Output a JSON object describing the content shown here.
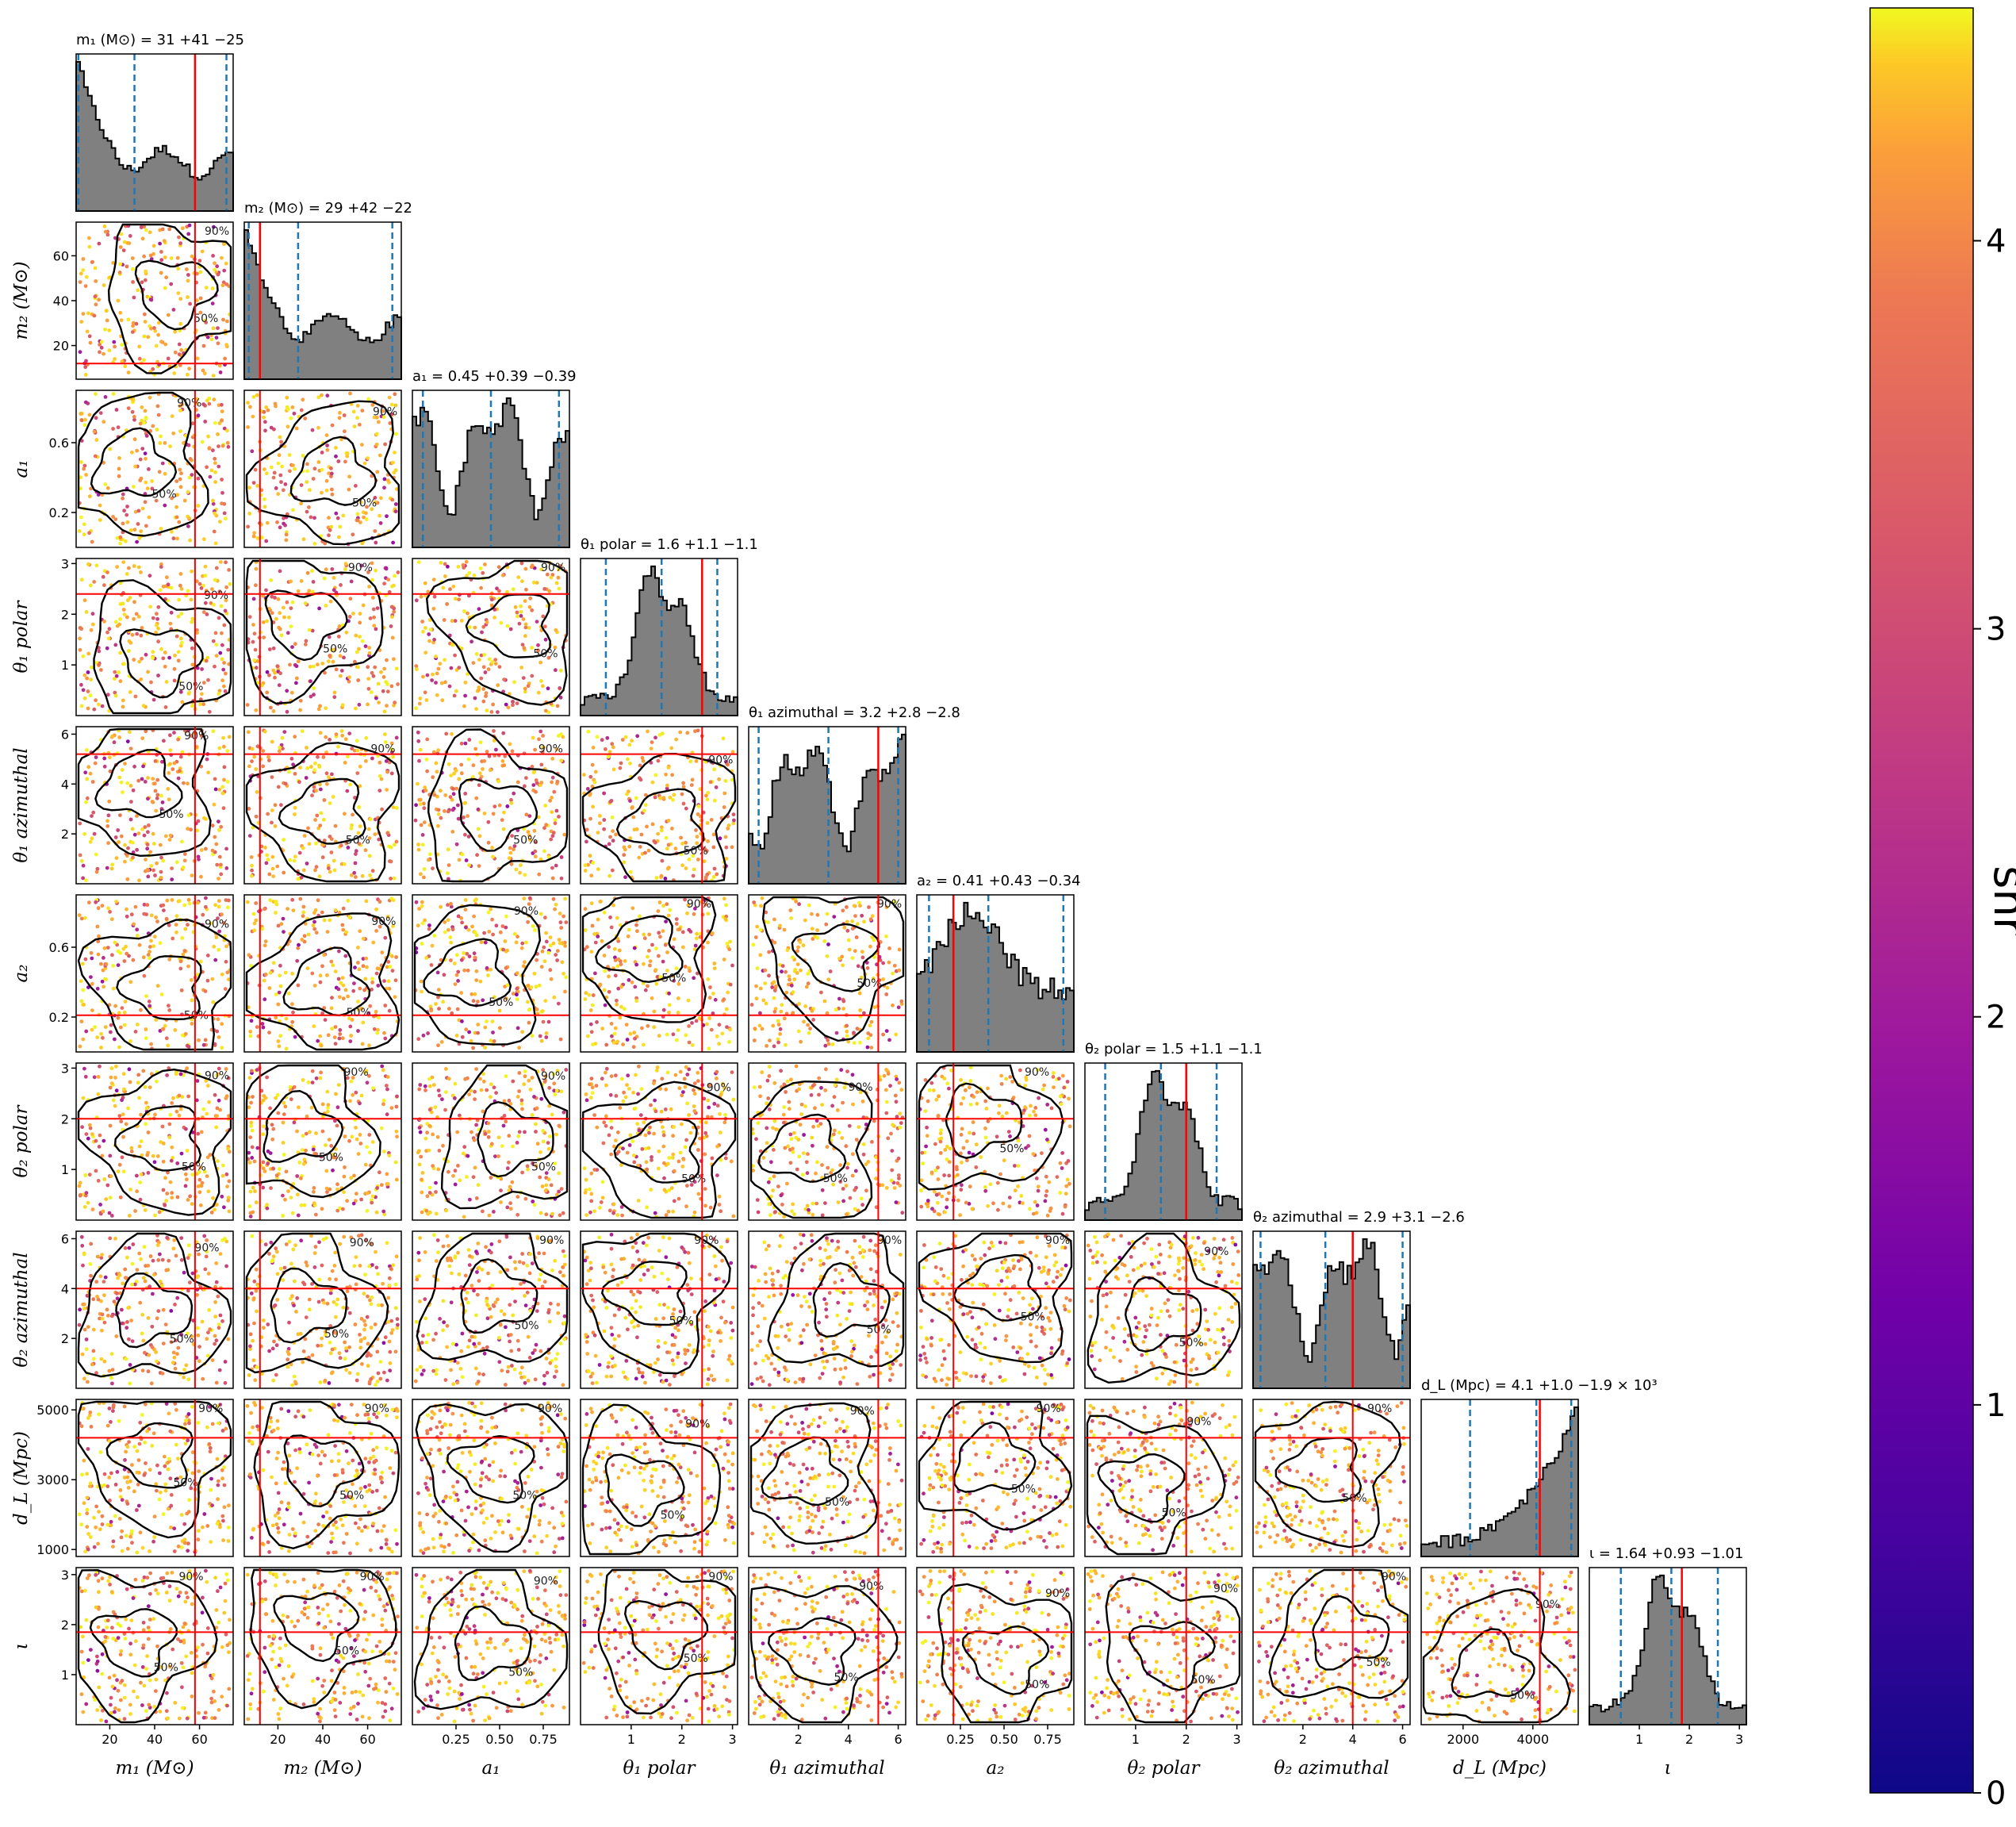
{
  "chart_data": {
    "type": "scatter",
    "subtype": "corner-plot",
    "colorbar": {
      "label": "snr",
      "range": [
        0,
        4.6
      ],
      "ticks": [
        "0",
        "1",
        "2",
        "3",
        "4"
      ],
      "colormap": "plasma"
    },
    "contour_levels": [
      "50%",
      "90%"
    ],
    "colors": {
      "histogram_fill": "#808080",
      "histogram_edge": "#000000",
      "injection_line": "#ff0000",
      "quantile_line": "#1f77b4",
      "contour": "#000000"
    },
    "parameters": [
      {
        "key": "m1",
        "axis_label": "m₁ (M⊙)",
        "title": "m₁ (M⊙) = 31 +41 −25",
        "range": [
          5,
          75
        ],
        "ticks": [
          20,
          40,
          60
        ],
        "tick_labels": [
          "20",
          "40",
          "60"
        ],
        "median": 31,
        "q_low": 6,
        "q_high": 72,
        "injection": 58
      },
      {
        "key": "m2",
        "axis_label": "m₂ (M⊙)",
        "title": "m₂ (M⊙) = 29 +42 −22",
        "range": [
          5,
          75
        ],
        "ticks": [
          20,
          40,
          60
        ],
        "tick_labels": [
          "20",
          "40",
          "60"
        ],
        "median": 29,
        "q_low": 7,
        "q_high": 71,
        "injection": 12
      },
      {
        "key": "a1",
        "axis_label": "a₁",
        "title": "a₁ = 0.45 +0.39 −0.39",
        "range": [
          0.0,
          0.9
        ],
        "ticks": [
          0.25,
          0.5,
          0.75
        ],
        "tick_labels": [
          "0.25",
          "0.50",
          "0.75"
        ],
        "y_ticks": [
          0.2,
          0.6
        ],
        "y_tick_labels": [
          "0.2",
          "0.6"
        ],
        "median": 0.45,
        "q_low": 0.06,
        "q_high": 0.84,
        "injection": null
      },
      {
        "key": "theta1_polar",
        "axis_label": "θ₁ polar",
        "title": "θ₁ polar = 1.6 +1.1 −1.1",
        "range": [
          0.0,
          3.1
        ],
        "ticks": [
          1,
          2,
          3
        ],
        "tick_labels": [
          "1",
          "2",
          "3"
        ],
        "median": 1.6,
        "q_low": 0.5,
        "q_high": 2.7,
        "injection": 2.4
      },
      {
        "key": "theta1_azimuthal",
        "axis_label": "θ₁ azimuthal",
        "title": "θ₁ azimuthal = 3.2 +2.8 −2.8",
        "range": [
          0.0,
          6.3
        ],
        "ticks": [
          2,
          4,
          6
        ],
        "tick_labels": [
          "2",
          "4",
          "6"
        ],
        "median": 3.2,
        "q_low": 0.4,
        "q_high": 6.0,
        "injection": 5.2
      },
      {
        "key": "a2",
        "axis_label": "a₂",
        "title": "a₂ = 0.41 +0.43 −0.34",
        "range": [
          0.0,
          0.9
        ],
        "ticks": [
          0.25,
          0.5,
          0.75
        ],
        "tick_labels": [
          "0.25",
          "0.50",
          "0.75"
        ],
        "y_ticks": [
          0.2,
          0.6
        ],
        "y_tick_labels": [
          "0.2",
          "0.6"
        ],
        "median": 0.41,
        "q_low": 0.07,
        "q_high": 0.84,
        "injection": 0.21
      },
      {
        "key": "theta2_polar",
        "axis_label": "θ₂ polar",
        "title": "θ₂ polar = 1.5 +1.1 −1.1",
        "range": [
          0.0,
          3.1
        ],
        "ticks": [
          1,
          2,
          3
        ],
        "tick_labels": [
          "1",
          "2",
          "3"
        ],
        "median": 1.5,
        "q_low": 0.4,
        "q_high": 2.6,
        "injection": 2.0
      },
      {
        "key": "theta2_azimuthal",
        "axis_label": "θ₂ azimuthal",
        "title": "θ₂ azimuthal = 2.9 +3.1 −2.6",
        "range": [
          0.0,
          6.3
        ],
        "ticks": [
          2,
          4,
          6
        ],
        "tick_labels": [
          "2",
          "4",
          "6"
        ],
        "median": 2.9,
        "q_low": 0.3,
        "q_high": 6.0,
        "injection": 4.0
      },
      {
        "key": "dL",
        "axis_label": "d_L (Mpc)",
        "title": "d_L (Mpc) = 4.1 +1.0 −1.9 × 10³",
        "range": [
          800,
          5300
        ],
        "ticks": [
          2000,
          4000
        ],
        "tick_labels": [
          "2000",
          "4000"
        ],
        "y_ticks": [
          1000,
          3000,
          5000
        ],
        "y_tick_labels": [
          "1000",
          "3000",
          "5000"
        ],
        "median": 4100,
        "q_low": 2200,
        "q_high": 5100,
        "injection": 4200
      },
      {
        "key": "iota",
        "axis_label": "ι",
        "title": "ι = 1.64 +0.93 −1.01",
        "range": [
          0.0,
          3.14
        ],
        "ticks": [
          1,
          2,
          3
        ],
        "tick_labels": [
          "1",
          "2",
          "3"
        ],
        "median": 1.64,
        "q_low": 0.63,
        "q_high": 2.57,
        "injection": 1.85
      }
    ]
  }
}
